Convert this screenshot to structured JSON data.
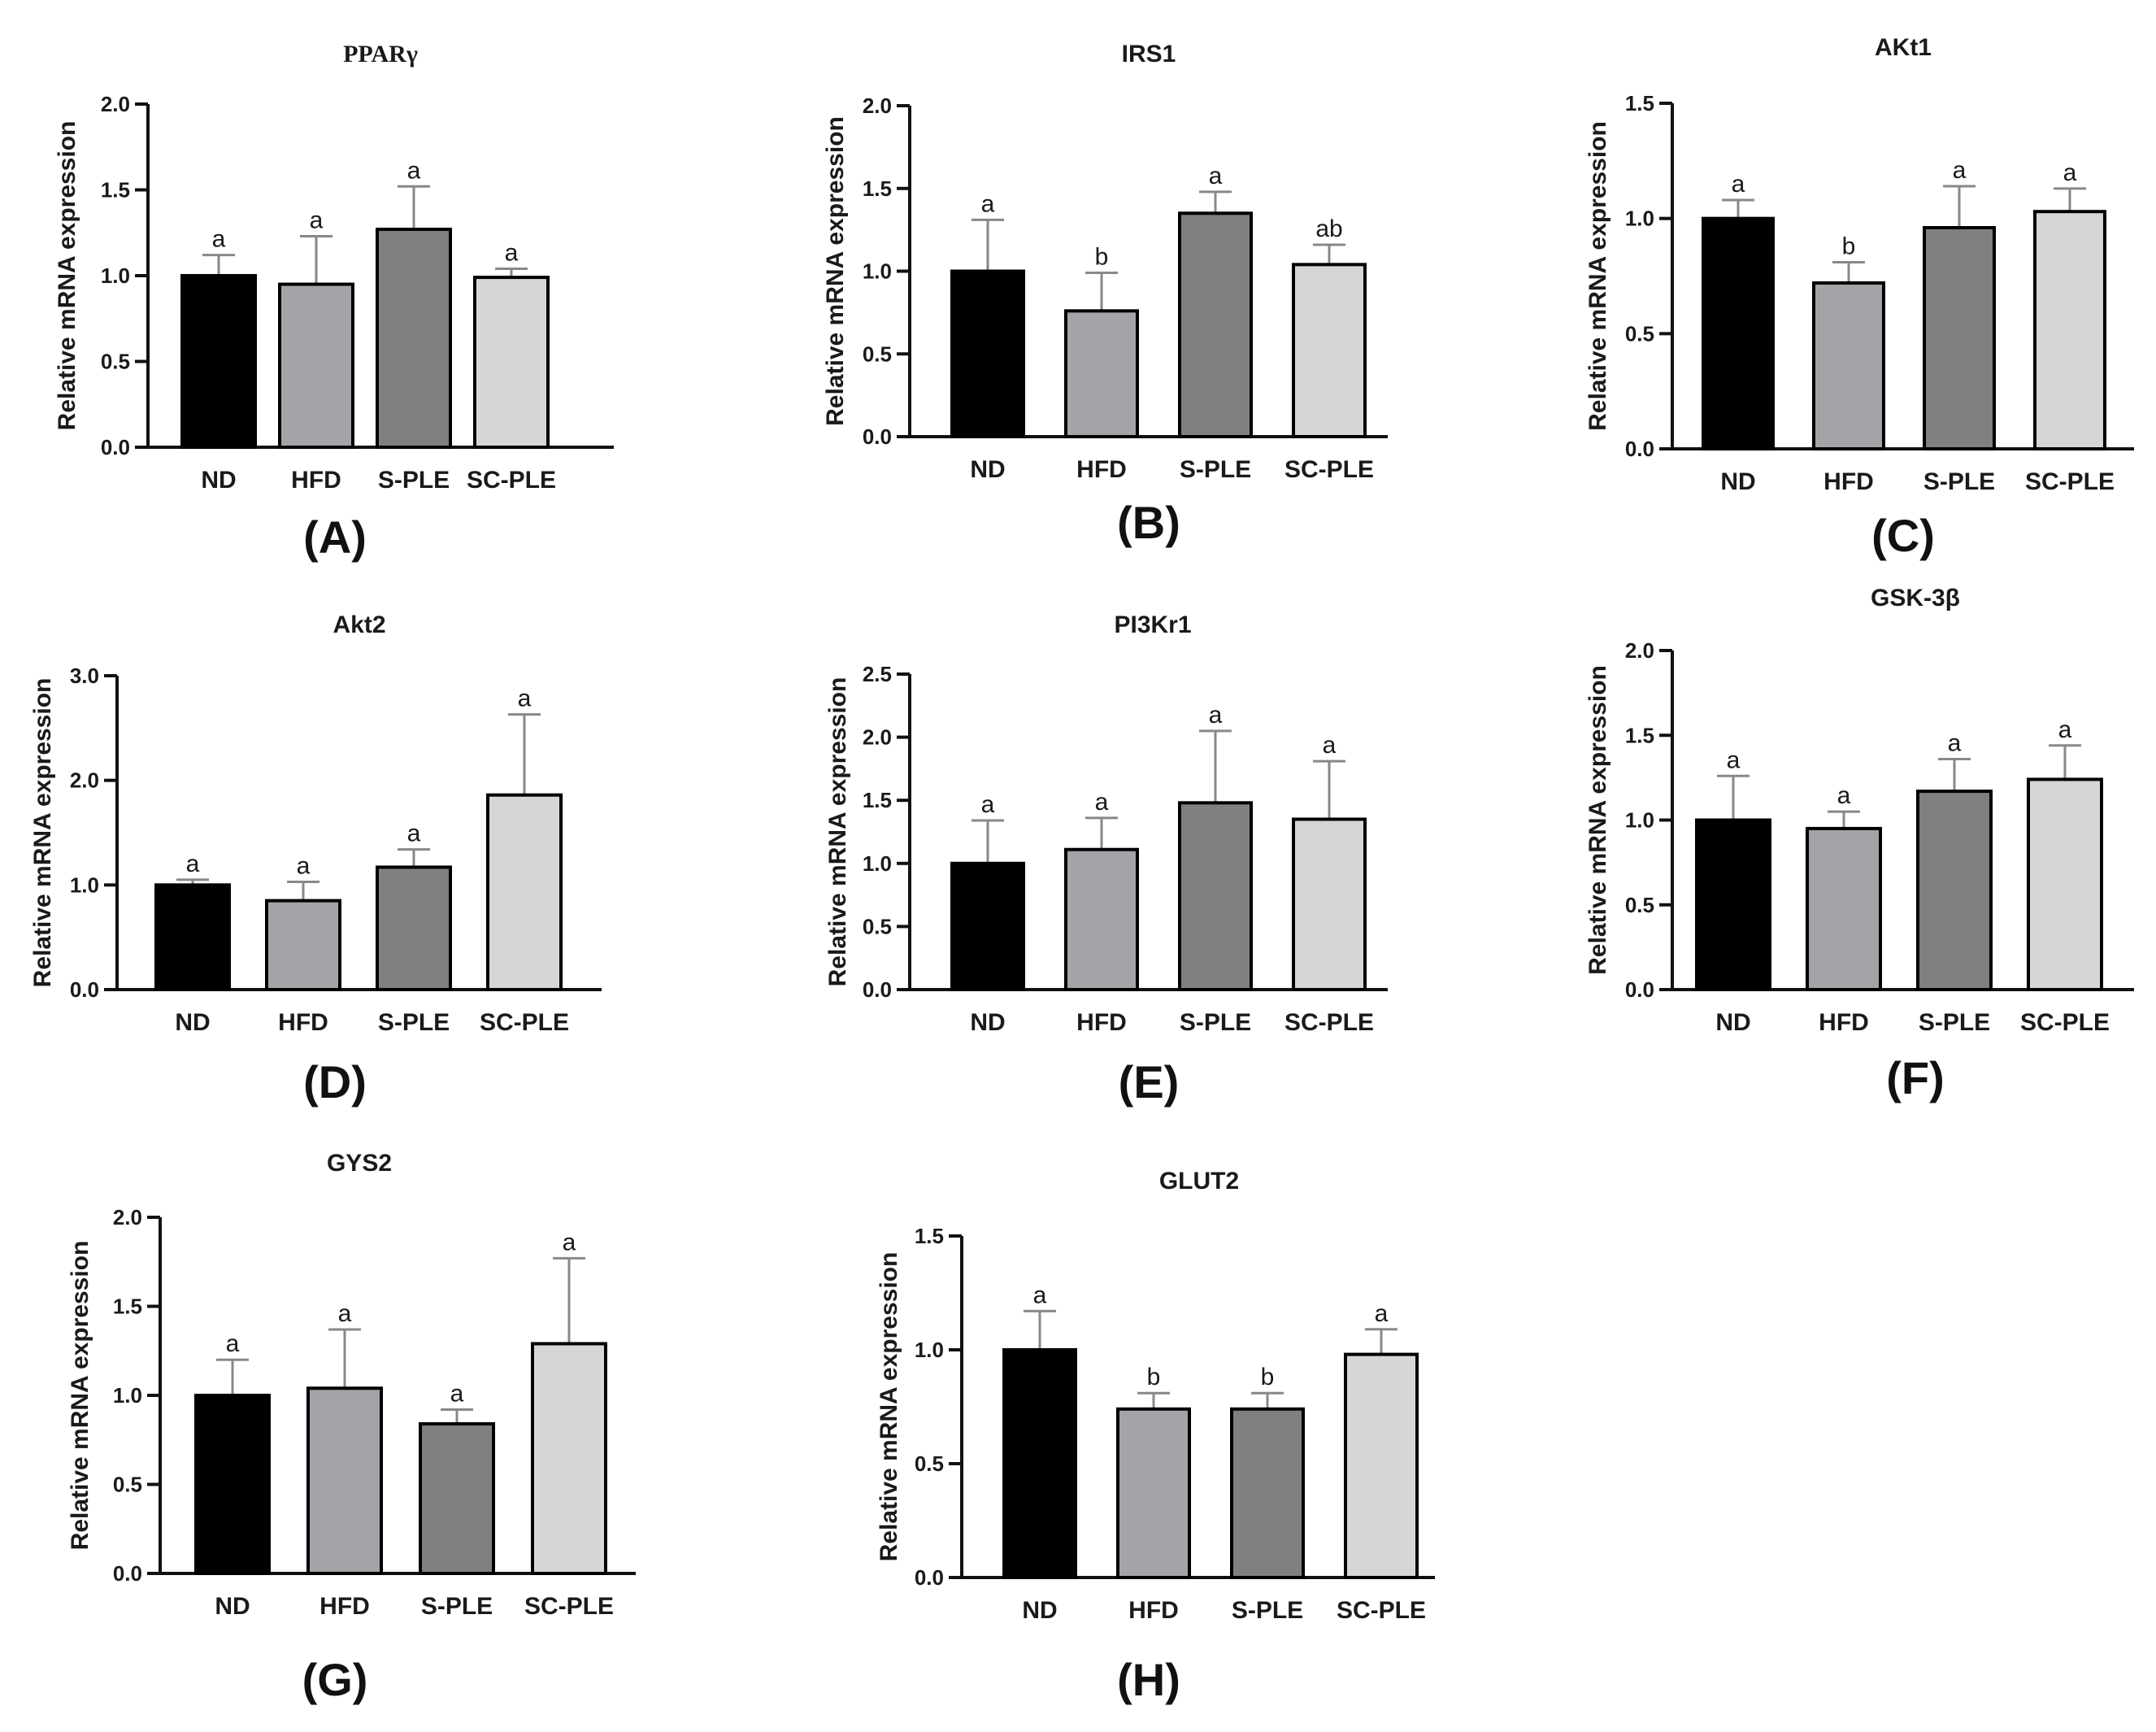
{
  "chart_data": [
    {
      "type": "bar",
      "letter": "(A)",
      "title": "PPARγ",
      "ylabel": "Relative mRNA expression",
      "xlabel": "",
      "ylim": [
        0,
        2.0
      ],
      "yticks": [
        "0.0",
        "0.5",
        "1.0",
        "1.5",
        "2.0"
      ],
      "categories": [
        "ND",
        "HFD",
        "S-PLE",
        "SC-PLE"
      ],
      "values": [
        1.0,
        0.95,
        1.27,
        0.99
      ],
      "errors": [
        0.12,
        0.28,
        0.25,
        0.05
      ],
      "significance": [
        "a",
        "a",
        "a",
        "a"
      ]
    },
    {
      "type": "bar",
      "letter": "(B)",
      "title": "IRS1",
      "ylabel": "Relative mRNA expression",
      "xlabel": "",
      "ylim": [
        0,
        2.0
      ],
      "yticks": [
        "0.0",
        "0.5",
        "1.0",
        "1.5",
        "2.0"
      ],
      "categories": [
        "ND",
        "HFD",
        "S-PLE",
        "SC-PLE"
      ],
      "values": [
        1.0,
        0.76,
        1.35,
        1.04
      ],
      "errors": [
        0.31,
        0.23,
        0.13,
        0.12
      ],
      "significance": [
        "a",
        "b",
        "a",
        "ab"
      ]
    },
    {
      "type": "bar",
      "letter": "(C)",
      "title": "AKt1",
      "ylabel": "Relative mRNA expression",
      "xlabel": "",
      "ylim": [
        0,
        1.5
      ],
      "yticks": [
        "0.0",
        "0.5",
        "1.0",
        "1.5"
      ],
      "categories": [
        "ND",
        "HFD",
        "S-PLE",
        "SC-PLE"
      ],
      "values": [
        1.0,
        0.72,
        0.96,
        1.03
      ],
      "errors": [
        0.08,
        0.09,
        0.18,
        0.1
      ],
      "significance": [
        "a",
        "b",
        "a",
        "a"
      ]
    },
    {
      "type": "bar",
      "letter": "(D)",
      "title": "Akt2",
      "ylabel": "Relative mRNA expression",
      "xlabel": "",
      "ylim": [
        0,
        3.0
      ],
      "yticks": [
        "0.0",
        "1.0",
        "2.0",
        "3.0"
      ],
      "categories": [
        "ND",
        "HFD",
        "S-PLE",
        "SC-PLE"
      ],
      "values": [
        1.0,
        0.85,
        1.17,
        1.86
      ],
      "errors": [
        0.05,
        0.18,
        0.17,
        0.77
      ],
      "significance": [
        "a",
        "a",
        "a",
        "a"
      ]
    },
    {
      "type": "bar",
      "letter": "(E)",
      "title": "PI3Kr1",
      "ylabel": "Relative mRNA expression",
      "xlabel": "",
      "ylim": [
        0,
        2.5
      ],
      "yticks": [
        "0.0",
        "0.5",
        "1.0",
        "1.5",
        "2.0",
        "2.5"
      ],
      "categories": [
        "ND",
        "HFD",
        "S-PLE",
        "SC-PLE"
      ],
      "values": [
        1.0,
        1.11,
        1.48,
        1.35
      ],
      "errors": [
        0.34,
        0.25,
        0.57,
        0.46
      ],
      "significance": [
        "a",
        "a",
        "a",
        "a"
      ]
    },
    {
      "type": "bar",
      "letter": "(F)",
      "title": "GSK-3β",
      "ylabel": "Relative mRNA expression",
      "xlabel": "",
      "ylim": [
        0,
        2.0
      ],
      "yticks": [
        "0.0",
        "0.5",
        "1.0",
        "1.5",
        "2.0"
      ],
      "categories": [
        "ND",
        "HFD",
        "S-PLE",
        "SC-PLE"
      ],
      "values": [
        1.0,
        0.95,
        1.17,
        1.24
      ],
      "errors": [
        0.26,
        0.1,
        0.19,
        0.2
      ],
      "significance": [
        "a",
        "a",
        "a",
        "a"
      ]
    },
    {
      "type": "bar",
      "letter": "(G)",
      "title": "GYS2",
      "ylabel": "Relative mRNA expression",
      "xlabel": "",
      "ylim": [
        0,
        2.0
      ],
      "yticks": [
        "0.0",
        "0.5",
        "1.0",
        "1.5",
        "2.0"
      ],
      "categories": [
        "ND",
        "HFD",
        "S-PLE",
        "SC-PLE"
      ],
      "values": [
        1.0,
        1.04,
        0.84,
        1.29
      ],
      "errors": [
        0.2,
        0.33,
        0.08,
        0.48
      ],
      "significance": [
        "a",
        "a",
        "a",
        "a"
      ]
    },
    {
      "type": "bar",
      "letter": "(H)",
      "title": "GLUT2",
      "ylabel": "Relative mRNA expression",
      "xlabel": "",
      "ylim": [
        0,
        1.5
      ],
      "yticks": [
        "0.0",
        "0.5",
        "1.0",
        "1.5"
      ],
      "categories": [
        "ND",
        "HFD",
        "S-PLE",
        "SC-PLE"
      ],
      "values": [
        1.0,
        0.74,
        0.74,
        0.98
      ],
      "errors": [
        0.17,
        0.07,
        0.07,
        0.11
      ],
      "significance": [
        "a",
        "b",
        "b",
        "a"
      ]
    }
  ],
  "colors": {
    "bars": [
      "#000000",
      "#a3a3a8",
      "#808080",
      "#d6d6d6"
    ],
    "axis": "#111111",
    "error_bar": "#888888"
  }
}
